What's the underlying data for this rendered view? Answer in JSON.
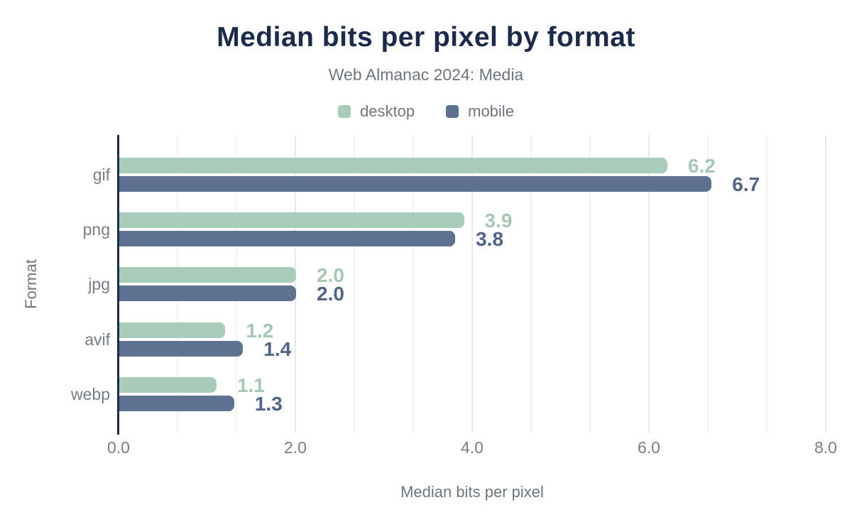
{
  "header": {
    "title": "Median bits per pixel by format",
    "subtitle": "Web Almanac 2024: Media"
  },
  "legend": {
    "items": [
      {
        "label": "desktop",
        "color": "#a8ccba"
      },
      {
        "label": "mobile",
        "color": "#5d7190"
      }
    ]
  },
  "chart_data": {
    "type": "bar",
    "orientation": "horizontal",
    "title": "Median bits per pixel by format",
    "subtitle": "Web Almanac 2024: Media",
    "categories": [
      "gif",
      "png",
      "jpg",
      "avif",
      "webp"
    ],
    "series": [
      {
        "name": "desktop",
        "color": "#a8ccba",
        "label_color": "#a3c8b4",
        "values": [
          6.2,
          3.9,
          2.0,
          1.2,
          1.1
        ],
        "labels": [
          "6.2",
          "3.9",
          "2.0",
          "1.2",
          "1.1"
        ]
      },
      {
        "name": "mobile",
        "color": "#5d7190",
        "label_color": "#506589",
        "values": [
          6.7,
          3.8,
          2.0,
          1.4,
          1.3
        ],
        "labels": [
          "6.7",
          "3.8",
          "2.0",
          "1.4",
          "1.3"
        ]
      }
    ],
    "xlabel": "Median bits per pixel",
    "ylabel": "Format",
    "xlim": [
      0,
      8
    ],
    "x_ticks": [
      {
        "v": 0,
        "label": "0.0"
      },
      {
        "v": 2,
        "label": "2.0"
      },
      {
        "v": 4,
        "label": "4.0"
      },
      {
        "v": 6,
        "label": "6.0"
      },
      {
        "v": 8,
        "label": "8.0"
      }
    ],
    "grid": {
      "major_step": 2,
      "minor_divisions_per_major": 3,
      "legend_position": "top"
    }
  },
  "colors": {
    "title": "#1a2b4c",
    "text_gray": "#6e767f",
    "tick_gray": "#767e87",
    "axis_line": "#1c2b4a",
    "grid_minor": "#f2f2f2",
    "grid_major": "#e9e9e9",
    "background": "#ffffff"
  }
}
